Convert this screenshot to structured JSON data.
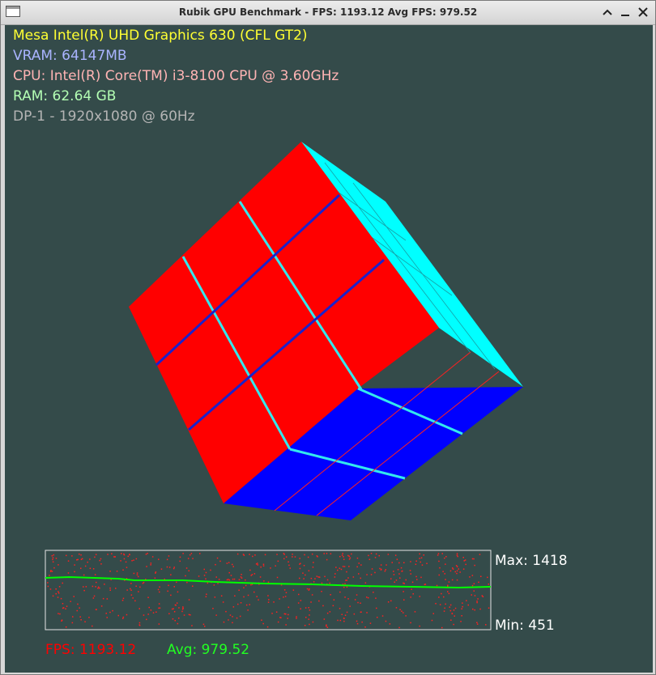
{
  "window": {
    "title": "Rubik GPU Benchmark - FPS: 1193.12 Avg FPS: 979.52",
    "controls": {
      "maximize_icon": "chevron-up-icon",
      "minimize_icon": "minimize-icon",
      "close_icon": "close-icon"
    }
  },
  "info": {
    "gpu": "Mesa Intel(R) UHD Graphics 630 (CFL GT2)",
    "vram": "VRAM: 64147MB",
    "cpu": "CPU: Intel(R) Core(TM) i3-8100 CPU @ 3.60GHz",
    "ram": "RAM: 62.64 GB",
    "display": "DP-1 - 1920x1080 @ 60Hz"
  },
  "graph": {
    "max_label": "Max: 1418",
    "min_label": "Min: 451",
    "fps_label": "FPS: 1193.12",
    "avg_label": "Avg: 979.52"
  },
  "colors": {
    "background": "#344b4a",
    "gpu_text": "#ffff33",
    "vram_text": "#aab4ff",
    "cpu_text": "#ffb4b4",
    "ram_text": "#b4ffb4",
    "display_text": "#b4b4b4",
    "cube_front": "#ff0000",
    "cube_bottom": "#0000ff",
    "cube_side": "#00ffff",
    "fps_text": "#ff0000",
    "avg_text": "#22ff22"
  }
}
